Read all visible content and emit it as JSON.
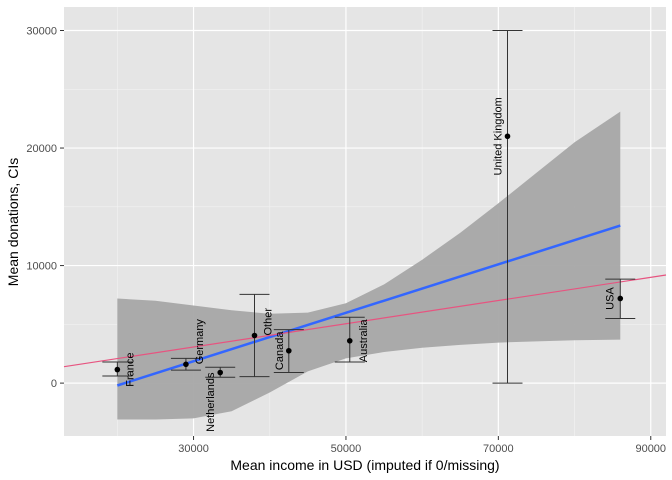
{
  "chart_data": {
    "type": "scatter",
    "title": "",
    "xlabel": "Mean income in USD (imputed if 0/missing)",
    "ylabel": "Mean donations, CIs",
    "xlim": [
      13000,
      92000
    ],
    "ylim": [
      -4500,
      32000
    ],
    "x_ticks": [
      30000,
      50000,
      70000,
      90000
    ],
    "y_ticks": [
      0,
      10000,
      20000,
      30000
    ],
    "grid": true,
    "points": [
      {
        "label": "France",
        "x": 20000,
        "y": 1150,
        "ci_low": 600,
        "ci_high": 1800
      },
      {
        "label": "Germany",
        "x": 29000,
        "y": 1600,
        "ci_low": 1100,
        "ci_high": 2100
      },
      {
        "label": "Netherlands",
        "x": 33500,
        "y": 900,
        "ci_low": 500,
        "ci_high": 1350
      },
      {
        "label": "Other",
        "x": 38000,
        "y": 4050,
        "ci_low": 550,
        "ci_high": 7550
      },
      {
        "label": "Canada",
        "x": 42500,
        "y": 2750,
        "ci_low": 900,
        "ci_high": 4550
      },
      {
        "label": "Australia",
        "x": 50500,
        "y": 3600,
        "ci_low": 1800,
        "ci_high": 5600
      },
      {
        "label": "United Kingdom",
        "x": 71200,
        "y": 21000,
        "ci_low": 0,
        "ci_high": 30000
      },
      {
        "label": "USA",
        "x": 86000,
        "y": 7200,
        "ci_low": 5500,
        "ci_high": 8850
      }
    ],
    "series": [
      {
        "name": "linear fit",
        "color": "#3366FF",
        "x": [
          20000,
          86000
        ],
        "y": [
          -200,
          13400
        ]
      },
      {
        "name": "reference line",
        "color": "#E75480",
        "x": [
          13000,
          92000
        ],
        "y": [
          1400,
          9200
        ]
      }
    ],
    "confidence_band": {
      "color": "#A6A6A6",
      "x": [
        20000,
        25000,
        30000,
        35000,
        40000,
        45000,
        50000,
        55000,
        60000,
        65000,
        70000,
        75000,
        80000,
        86000
      ],
      "upper": [
        7200,
        7000,
        6600,
        6200,
        5900,
        6000,
        6800,
        8400,
        10500,
        12800,
        15300,
        17900,
        20500,
        23100
      ],
      "lower": [
        -3100,
        -3100,
        -3000,
        -2400,
        -800,
        1000,
        2100,
        2650,
        3000,
        3250,
        3450,
        3550,
        3650,
        3700
      ]
    },
    "colors": {
      "panel": "#E5E5E5",
      "grid": "#FFFFFF",
      "point": "#000000",
      "errorbar": "#333333"
    }
  }
}
